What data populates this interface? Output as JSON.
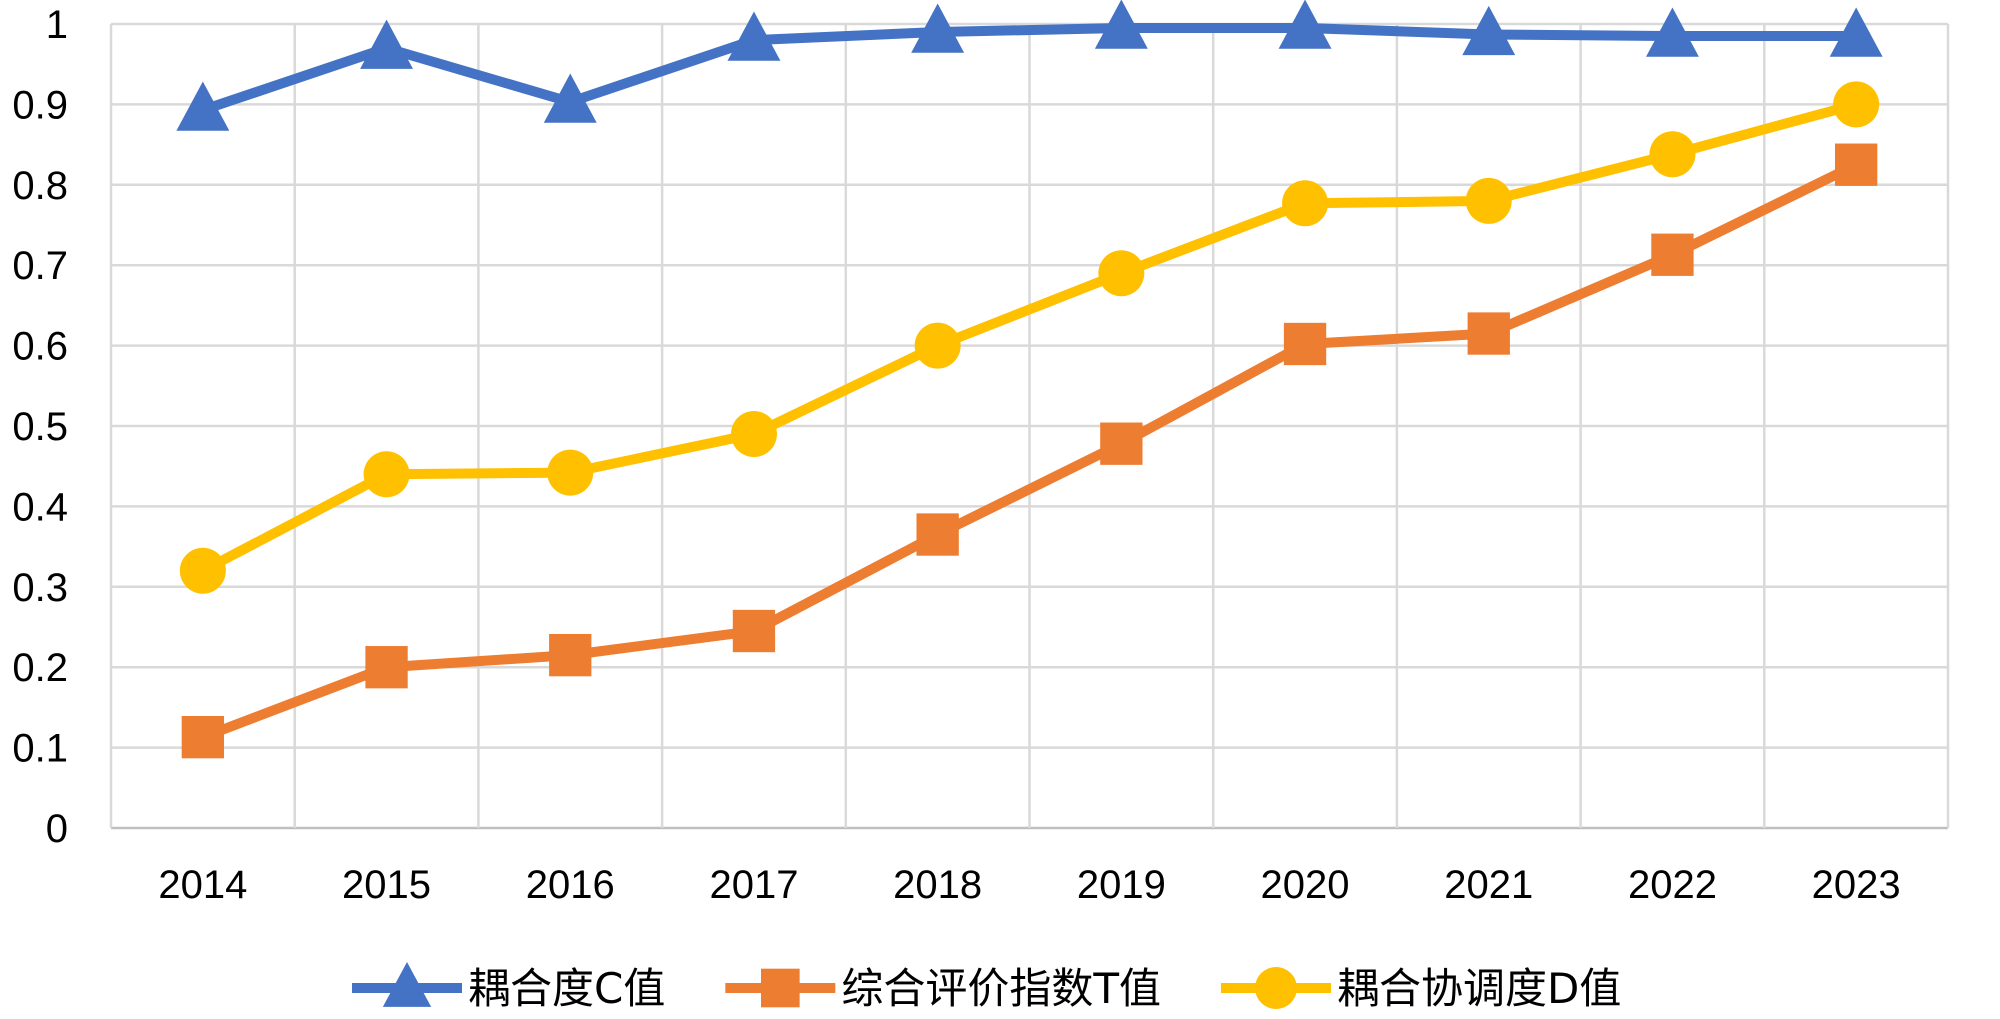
{
  "chart_data": {
    "type": "line",
    "title": "",
    "xlabel": "",
    "ylabel": "",
    "categories": [
      "2014",
      "2015",
      "2016",
      "2017",
      "2018",
      "2019",
      "2020",
      "2021",
      "2022",
      "2023"
    ],
    "ylim": [
      0,
      1
    ],
    "yticks": [
      "0",
      "0.1",
      "0.2",
      "0.3",
      "0.4",
      "0.5",
      "0.6",
      "0.7",
      "0.8",
      "0.9",
      "1"
    ],
    "grid": true,
    "legend_position": "bottom",
    "series": [
      {
        "name": "耦合度C值",
        "marker": "triangle",
        "color": "#4472C4",
        "values": [
          0.893,
          0.97,
          0.903,
          0.98,
          0.99,
          0.995,
          0.995,
          0.987,
          0.985,
          0.985
        ]
      },
      {
        "name": "综合评价指数T值",
        "marker": "square",
        "color": "#ED7D31",
        "values": [
          0.113,
          0.2,
          0.215,
          0.245,
          0.365,
          0.478,
          0.602,
          0.615,
          0.713,
          0.825
        ]
      },
      {
        "name": "耦合协调度D值",
        "marker": "circle",
        "color": "#FFC000",
        "values": [
          0.32,
          0.44,
          0.442,
          0.49,
          0.6,
          0.69,
          0.777,
          0.78,
          0.838,
          0.9
        ]
      }
    ]
  }
}
